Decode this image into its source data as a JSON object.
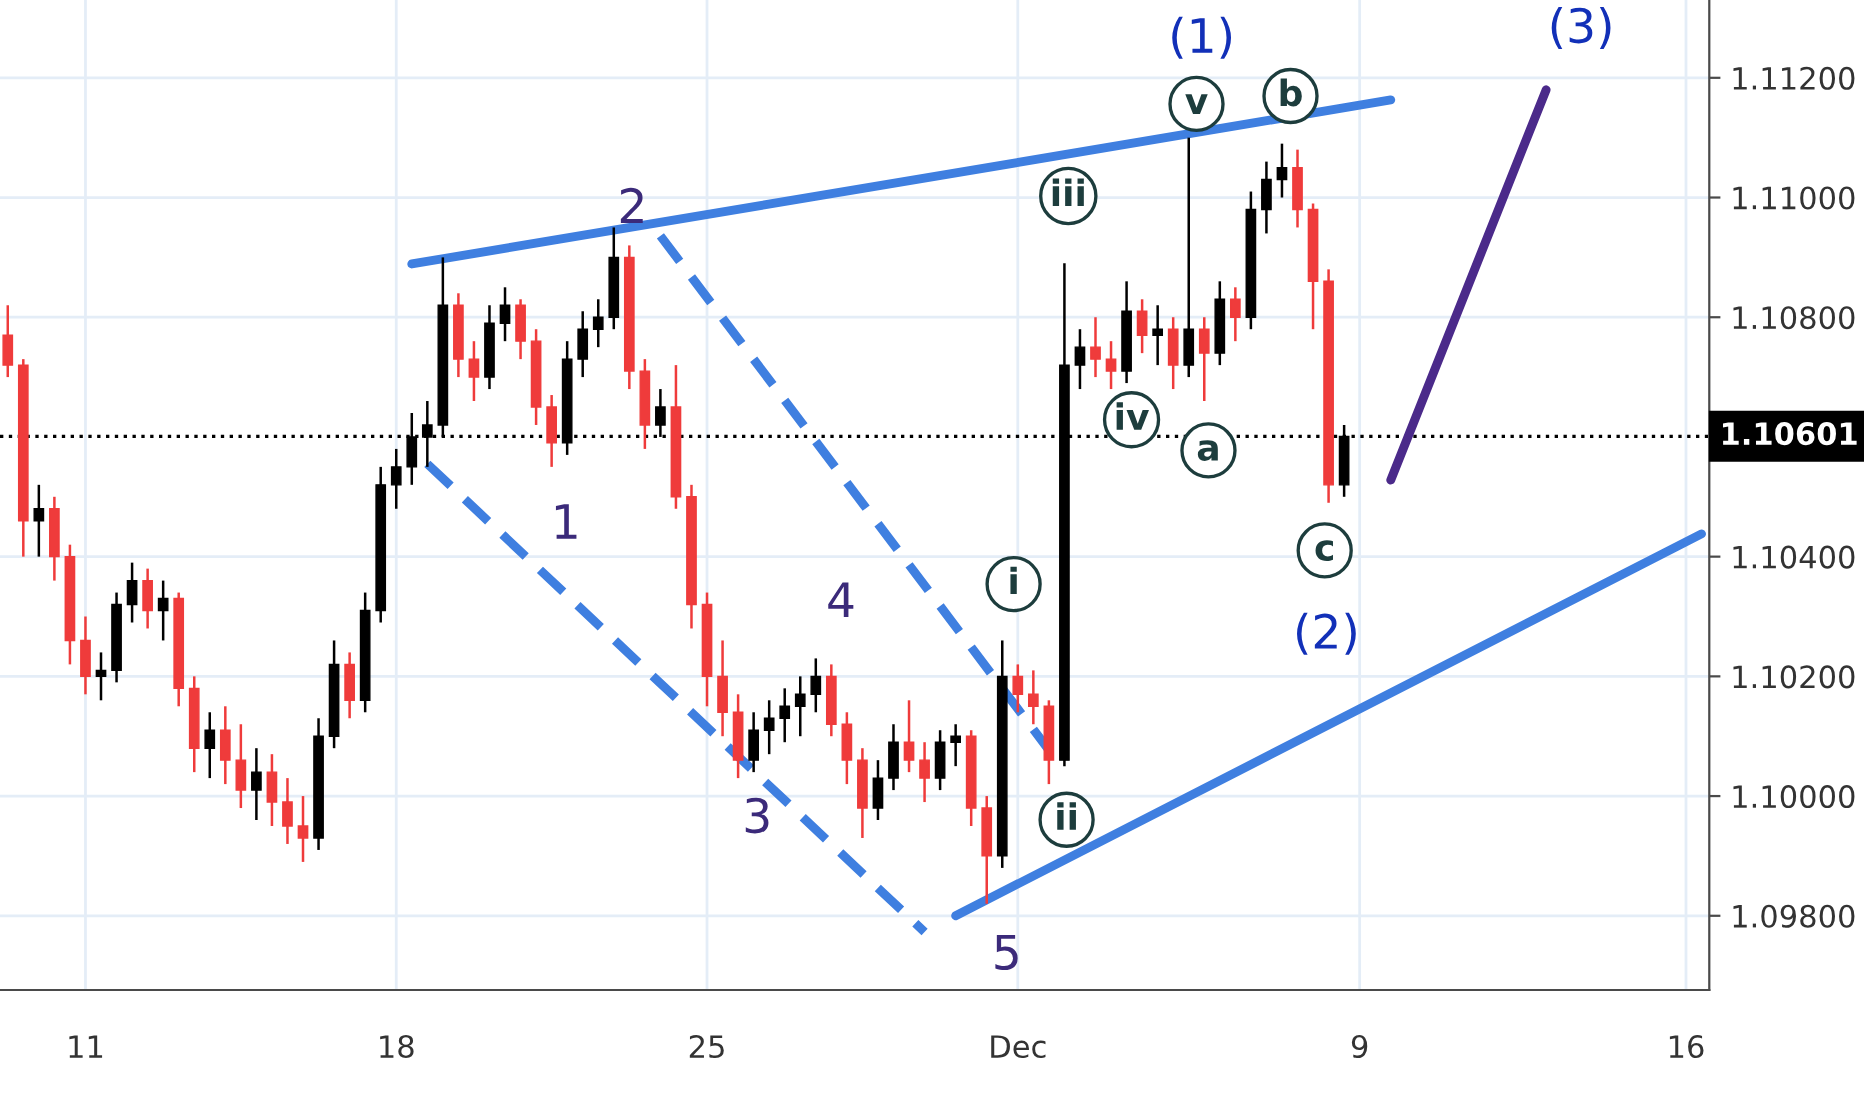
{
  "chart_data": {
    "type": "candlestick",
    "categories": [
      null,
      null,
      null,
      null,
      null,
      "11",
      null,
      null,
      null,
      null,
      null,
      null,
      null,
      null,
      null,
      null,
      null,
      null,
      null,
      null,
      null,
      null,
      null,
      null,
      null,
      "18",
      null,
      null,
      null,
      null,
      null,
      null,
      null,
      null,
      null,
      null,
      null,
      null,
      null,
      null,
      null,
      null,
      null,
      null,
      null,
      "25",
      null,
      null,
      null,
      null,
      null,
      null,
      null,
      null,
      null,
      null,
      null,
      null,
      null,
      null,
      null,
      null,
      null,
      null,
      null,
      "Dec",
      null,
      null,
      null,
      null,
      null,
      null,
      null,
      null,
      null,
      null,
      null,
      null,
      null,
      null,
      null,
      null,
      null,
      null,
      null,
      null,
      null,
      "9",
      null,
      null,
      null,
      null,
      null,
      null,
      null,
      null,
      null,
      null,
      null,
      null,
      null,
      null,
      null,
      null,
      null,
      null,
      null,
      null,
      "16",
      null
    ],
    "ohlc": [
      [
        1.1077,
        1.1082,
        1.107,
        1.1072
      ],
      [
        1.1072,
        1.1073,
        1.104,
        1.1046
      ],
      [
        1.1046,
        1.1052,
        1.104,
        1.1048
      ],
      [
        1.1048,
        1.105,
        1.1036,
        1.104
      ],
      [
        1.104,
        1.1042,
        1.1022,
        1.1026
      ],
      [
        1.1026,
        1.103,
        1.1017,
        1.102
      ],
      [
        1.102,
        1.1024,
        1.1016,
        1.1021
      ],
      [
        1.1021,
        1.1034,
        1.1019,
        1.1032
      ],
      [
        1.1032,
        1.1039,
        1.1029,
        1.1036
      ],
      [
        1.1036,
        1.1038,
        1.1028,
        1.1031
      ],
      [
        1.1031,
        1.1036,
        1.1026,
        1.1033
      ],
      [
        1.1033,
        1.1034,
        1.1015,
        1.1018
      ],
      [
        1.1018,
        1.102,
        1.1004,
        1.1008
      ],
      [
        1.1008,
        1.1014,
        1.1003,
        1.1011
      ],
      [
        1.1011,
        1.1015,
        1.1002,
        1.1006
      ],
      [
        1.1006,
        1.1012,
        1.0998,
        1.1001
      ],
      [
        1.1001,
        1.1008,
        1.0996,
        1.1004
      ],
      [
        1.1004,
        1.1007,
        1.0995,
        1.0999
      ],
      [
        1.0999,
        1.1003,
        1.0992,
        1.0995
      ],
      [
        1.0995,
        1.1,
        1.0989,
        1.0993
      ],
      [
        1.0993,
        1.1013,
        1.0991,
        1.101
      ],
      [
        1.101,
        1.1026,
        1.1008,
        1.1022
      ],
      [
        1.1022,
        1.1024,
        1.1013,
        1.1016
      ],
      [
        1.1016,
        1.1034,
        1.1014,
        1.1031
      ],
      [
        1.1031,
        1.1055,
        1.1029,
        1.1052
      ],
      [
        1.1052,
        1.1058,
        1.1048,
        1.1055
      ],
      [
        1.1055,
        1.1064,
        1.1052,
        1.106
      ],
      [
        1.106,
        1.1066,
        1.1055,
        1.1062
      ],
      [
        1.1062,
        1.109,
        1.106,
        1.1082
      ],
      [
        1.1082,
        1.1084,
        1.107,
        1.1073
      ],
      [
        1.1073,
        1.1076,
        1.1066,
        1.107
      ],
      [
        1.107,
        1.1082,
        1.1068,
        1.1079
      ],
      [
        1.1079,
        1.1085,
        1.1076,
        1.1082
      ],
      [
        1.1082,
        1.1083,
        1.1073,
        1.1076
      ],
      [
        1.1076,
        1.1078,
        1.1062,
        1.1065
      ],
      [
        1.1065,
        1.1067,
        1.1055,
        1.1059
      ],
      [
        1.1059,
        1.1076,
        1.1057,
        1.1073
      ],
      [
        1.1073,
        1.1081,
        1.107,
        1.1078
      ],
      [
        1.1078,
        1.1083,
        1.1075,
        1.108
      ],
      [
        1.108,
        1.1095,
        1.1078,
        1.109
      ],
      [
        1.109,
        1.1092,
        1.1068,
        1.1071
      ],
      [
        1.1071,
        1.1073,
        1.1058,
        1.1062
      ],
      [
        1.1062,
        1.1068,
        1.106,
        1.1065
      ],
      [
        1.1065,
        1.1072,
        1.1048,
        1.105
      ],
      [
        1.105,
        1.1052,
        1.1028,
        1.1032
      ],
      [
        1.1032,
        1.1034,
        1.1015,
        1.102
      ],
      [
        1.102,
        1.1026,
        1.101,
        1.1014
      ],
      [
        1.1014,
        1.1017,
        1.1003,
        1.1006
      ],
      [
        1.1006,
        1.1014,
        1.1004,
        1.1011
      ],
      [
        1.1011,
        1.1016,
        1.1007,
        1.1013
      ],
      [
        1.1013,
        1.1018,
        1.1009,
        1.1015
      ],
      [
        1.1015,
        1.102,
        1.101,
        1.1017
      ],
      [
        1.1017,
        1.1023,
        1.1014,
        1.102
      ],
      [
        1.102,
        1.1022,
        1.101,
        1.1012
      ],
      [
        1.1012,
        1.1014,
        1.1002,
        1.1006
      ],
      [
        1.1006,
        1.1008,
        1.0993,
        1.0998
      ],
      [
        1.0998,
        1.1006,
        1.0996,
        1.1003
      ],
      [
        1.1003,
        1.1012,
        1.1001,
        1.1009
      ],
      [
        1.1009,
        1.1016,
        1.1004,
        1.1006
      ],
      [
        1.1006,
        1.1009,
        1.0999,
        1.1003
      ],
      [
        1.1003,
        1.1011,
        1.1001,
        1.1009
      ],
      [
        1.1009,
        1.1012,
        1.1005,
        1.101
      ],
      [
        1.101,
        1.1011,
        1.0995,
        1.0998
      ],
      [
        1.0998,
        1.1,
        1.0982,
        1.099
      ],
      [
        1.099,
        1.1026,
        1.0988,
        1.102
      ],
      [
        1.102,
        1.1022,
        1.1014,
        1.1017
      ],
      [
        1.1017,
        1.1021,
        1.1012,
        1.1015
      ],
      [
        1.1015,
        1.1016,
        1.1002,
        1.1006
      ],
      [
        1.1006,
        1.1089,
        1.1005,
        1.1072
      ],
      [
        1.1072,
        1.1078,
        1.1068,
        1.1075
      ],
      [
        1.1075,
        1.108,
        1.107,
        1.1073
      ],
      [
        1.1073,
        1.1076,
        1.1068,
        1.1071
      ],
      [
        1.1071,
        1.1086,
        1.1069,
        1.1081
      ],
      [
        1.1081,
        1.1083,
        1.1074,
        1.1077
      ],
      [
        1.1077,
        1.1082,
        1.1072,
        1.1078
      ],
      [
        1.1078,
        1.108,
        1.1068,
        1.1072
      ],
      [
        1.1072,
        1.111,
        1.107,
        1.1078
      ],
      [
        1.1078,
        1.108,
        1.1066,
        1.1074
      ],
      [
        1.1074,
        1.1086,
        1.1072,
        1.1083
      ],
      [
        1.1083,
        1.1085,
        1.1076,
        1.108
      ],
      [
        1.108,
        1.1101,
        1.1078,
        1.1098
      ],
      [
        1.1098,
        1.1106,
        1.1094,
        1.1103
      ],
      [
        1.1103,
        1.1109,
        1.11,
        1.1105
      ],
      [
        1.1105,
        1.1108,
        1.1095,
        1.1098
      ],
      [
        1.1098,
        1.1099,
        1.1078,
        1.1086
      ],
      [
        1.1086,
        1.1088,
        1.1049,
        1.1052
      ],
      [
        1.1052,
        1.1062,
        1.105,
        1.10601
      ],
      null,
      null,
      null,
      null,
      null,
      null,
      null,
      null,
      null,
      null,
      null,
      null,
      null,
      null,
      null,
      null,
      null,
      null,
      null,
      null,
      null,
      null,
      null
    ],
    "series": [
      {
        "type": "line",
        "color": "#3f7fe0",
        "line_style": "solid",
        "values": [
          null,
          null,
          null,
          null,
          null,
          null,
          null,
          null,
          null,
          null,
          null,
          null,
          null,
          null,
          null,
          null,
          null,
          null,
          null,
          null,
          null,
          null,
          null,
          null,
          null,
          null,
          1.10889,
          null,
          null,
          null,
          null,
          null,
          null,
          null,
          null,
          null,
          null,
          null,
          null,
          null,
          null,
          null,
          null,
          null,
          null,
          null,
          null,
          null,
          null,
          null,
          null,
          null,
          null,
          null,
          null,
          null,
          null,
          null,
          null,
          null,
          null,
          null,
          null,
          null,
          null,
          null,
          null,
          null,
          null,
          null,
          null,
          null,
          null,
          null,
          null,
          null,
          null,
          null,
          null,
          null,
          null,
          null,
          null,
          null,
          null,
          null,
          null,
          null,
          null,
          1.11163,
          null,
          null,
          null,
          null,
          null,
          null,
          null,
          null,
          null,
          null,
          null,
          null,
          null,
          null,
          null,
          null,
          null,
          null,
          null,
          null
        ]
      },
      {
        "type": "line",
        "color": "#3f7fe0",
        "line_style": "solid",
        "values": [
          null,
          null,
          null,
          null,
          null,
          null,
          null,
          null,
          null,
          null,
          null,
          null,
          null,
          null,
          null,
          null,
          null,
          null,
          null,
          null,
          null,
          null,
          null,
          null,
          null,
          null,
          null,
          null,
          null,
          null,
          null,
          null,
          null,
          null,
          null,
          null,
          null,
          null,
          null,
          null,
          null,
          null,
          null,
          null,
          null,
          null,
          null,
          null,
          null,
          null,
          null,
          null,
          null,
          null,
          null,
          null,
          null,
          null,
          null,
          null,
          null,
          1.098,
          null,
          null,
          null,
          null,
          null,
          null,
          null,
          null,
          null,
          null,
          null,
          null,
          null,
          null,
          null,
          null,
          null,
          null,
          null,
          null,
          null,
          null,
          null,
          null,
          null,
          null,
          null,
          null,
          null,
          null,
          null,
          null,
          null,
          null,
          null,
          null,
          null,
          null,
          null,
          null,
          null,
          null,
          null,
          null,
          null,
          null,
          null,
          1.10438
        ]
      },
      {
        "type": "line",
        "color": "#3f7fe0",
        "line_style": "dashed",
        "values": [
          null,
          null,
          null,
          null,
          null,
          null,
          null,
          null,
          null,
          null,
          null,
          null,
          null,
          null,
          null,
          null,
          null,
          null,
          null,
          null,
          null,
          null,
          null,
          null,
          null,
          null,
          null,
          1.10555,
          null,
          null,
          null,
          null,
          null,
          null,
          null,
          null,
          null,
          null,
          null,
          null,
          null,
          null,
          null,
          null,
          null,
          null,
          null,
          null,
          null,
          null,
          null,
          null,
          null,
          null,
          null,
          null,
          null,
          null,
          null,
          1.09773,
          null,
          null,
          null,
          null,
          null,
          null,
          null,
          null,
          null,
          null,
          null,
          null,
          null,
          null,
          null,
          null,
          null,
          null,
          null,
          null,
          null,
          null,
          null,
          null,
          null,
          null,
          null,
          null,
          null,
          null,
          null,
          null,
          null,
          null,
          null,
          null,
          null,
          null,
          null,
          null,
          null,
          null,
          null,
          null,
          null,
          null,
          null,
          null,
          null,
          null
        ]
      },
      {
        "type": "line",
        "color": "#3f7fe0",
        "line_style": "dashed",
        "values": [
          null,
          null,
          null,
          null,
          null,
          null,
          null,
          null,
          null,
          null,
          null,
          null,
          null,
          null,
          null,
          null,
          null,
          null,
          null,
          null,
          null,
          null,
          null,
          null,
          null,
          null,
          null,
          null,
          null,
          null,
          null,
          null,
          null,
          null,
          null,
          null,
          null,
          null,
          null,
          null,
          null,
          null,
          1.10936,
          null,
          null,
          null,
          null,
          null,
          null,
          null,
          null,
          null,
          null,
          null,
          null,
          null,
          null,
          null,
          null,
          null,
          null,
          null,
          null,
          null,
          null,
          null,
          null,
          1.10077,
          null,
          null,
          null,
          null,
          null,
          null,
          null,
          null,
          null,
          null,
          null,
          null,
          null,
          null,
          null,
          null,
          null,
          null,
          null,
          null,
          null,
          null,
          null,
          null,
          null,
          null,
          null,
          null,
          null,
          null,
          null,
          null,
          null,
          null,
          null,
          null,
          null,
          null,
          null,
          null,
          null,
          null
        ]
      },
      {
        "type": "line",
        "color": "#4b2a8a",
        "line_style": "solid",
        "values": [
          null,
          null,
          null,
          null,
          null,
          null,
          null,
          null,
          null,
          null,
          null,
          null,
          null,
          null,
          null,
          null,
          null,
          null,
          null,
          null,
          null,
          null,
          null,
          null,
          null,
          null,
          null,
          null,
          null,
          null,
          null,
          null,
          null,
          null,
          null,
          null,
          null,
          null,
          null,
          null,
          null,
          null,
          null,
          null,
          null,
          null,
          null,
          null,
          null,
          null,
          null,
          null,
          null,
          null,
          null,
          null,
          null,
          null,
          null,
          null,
          null,
          null,
          null,
          null,
          null,
          null,
          null,
          null,
          null,
          null,
          null,
          null,
          null,
          null,
          null,
          null,
          null,
          null,
          null,
          null,
          null,
          null,
          null,
          null,
          null,
          null,
          null,
          null,
          null,
          1.10528,
          null,
          null,
          null,
          null,
          null,
          null,
          null,
          null,
          null,
          1.1118,
          null,
          null,
          null,
          null,
          null,
          null,
          null,
          null,
          null,
          null
        ]
      }
    ],
    "ylim": [
      1.09676,
      1.1133
    ],
    "yticks": [
      {
        "value": 1.098,
        "label": "1.09800"
      },
      {
        "value": 1.1,
        "label": "1.10000"
      },
      {
        "value": 1.102,
        "label": "1.10200"
      },
      {
        "value": 1.104,
        "label": "1.10400"
      },
      {
        "value": 1.108,
        "label": "1.10800"
      },
      {
        "value": 1.11,
        "label": "1.11000"
      },
      {
        "value": 1.112,
        "label": "1.11200"
      }
    ],
    "grid": true,
    "ref_lines": [
      {
        "axis": "y",
        "value": 1.10601,
        "label": "1.10601",
        "color": "#000000",
        "line_style": "dotted"
      }
    ],
    "annotations": [
      "(1)",
      "(2)",
      "(3)",
      "1",
      "2",
      "3",
      "4",
      "5",
      "i",
      "ii",
      "iii",
      "iv",
      "v",
      "a",
      "b",
      "c"
    ]
  }
}
